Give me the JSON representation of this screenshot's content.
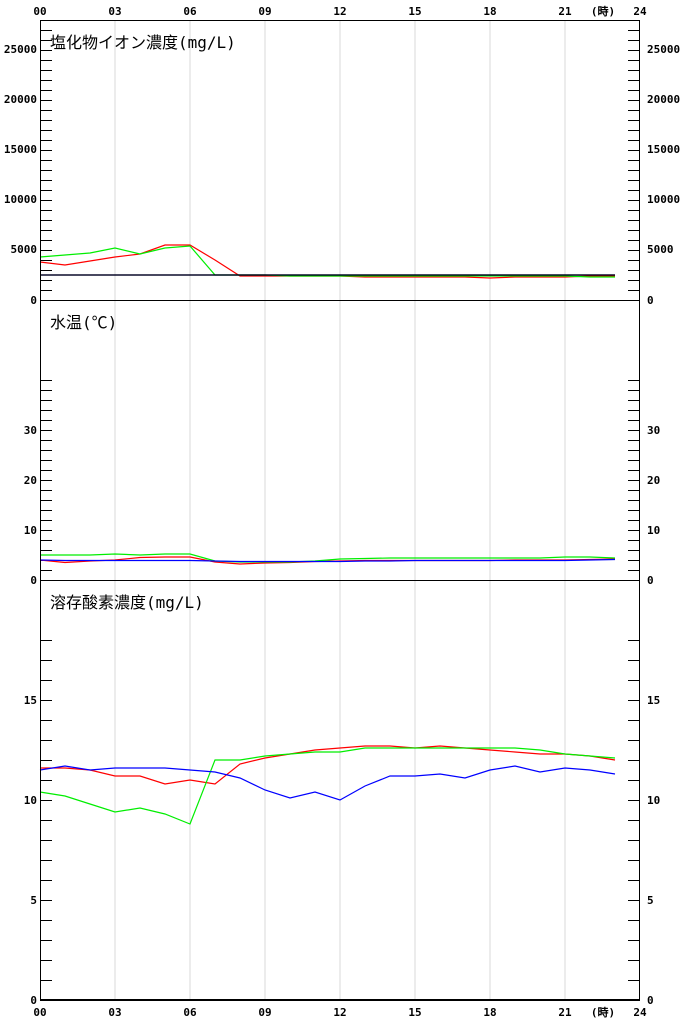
{
  "chart_data": {
    "x_ticks": [
      "00",
      "03",
      "06",
      "09",
      "12",
      "15",
      "18",
      "21",
      "24"
    ],
    "x_unit": "(時)",
    "panels": [
      {
        "title": "塩化物イオン濃度(mg/L)",
        "type": "line",
        "ylim": [
          0,
          28000
        ],
        "y_tick_labels": [
          "0",
          "5000",
          "10000",
          "15000",
          "20000",
          "25000"
        ],
        "y_tick_values": [
          0,
          5000,
          10000,
          15000,
          20000,
          25000
        ],
        "y_minor_step": 1000,
        "x": [
          0,
          1,
          2,
          3,
          4,
          5,
          6,
          7,
          8,
          9,
          10,
          11,
          12,
          13,
          14,
          15,
          16,
          17,
          18,
          19,
          20,
          21,
          22,
          23
        ],
        "series": [
          {
            "color": "#ff0000",
            "values": [
              3800,
              3500,
              3900,
              4300,
              4600,
              5500,
              5500,
              4000,
              2400,
              2400,
              2400,
              2400,
              2400,
              2300,
              2300,
              2300,
              2300,
              2300,
              2200,
              2300,
              2300,
              2300,
              2400,
              2400
            ]
          },
          {
            "color": "#00ee00",
            "values": [
              4300,
              4500,
              4700,
              5200,
              4600,
              5200,
              5400,
              2500,
              2500,
              2500,
              2400,
              2400,
              2400,
              2400,
              2400,
              2400,
              2400,
              2400,
              2400,
              2400,
              2400,
              2400,
              2300,
              2300
            ]
          },
          {
            "color": "#0000ff",
            "values": [
              2500,
              2500,
              2500,
              2500,
              2500,
              2500,
              2500,
              2500,
              2500,
              2500,
              2500,
              2500,
              2500,
              2500,
              2500,
              2500,
              2500,
              2500,
              2500,
              2500,
              2500,
              2500,
              2500,
              2500
            ]
          },
          {
            "color": "#000000",
            "values": [
              2500,
              2500,
              2500,
              2500,
              2500,
              2500,
              2500,
              2500,
              2500,
              2500,
              2500,
              2500,
              2500,
              2500,
              2500,
              2500,
              2500,
              2500,
              2500,
              2500,
              2500,
              2500,
              2500,
              2500
            ]
          }
        ]
      },
      {
        "title": "水温(℃)",
        "type": "line",
        "ylim": [
          0,
          56
        ],
        "y_tick_labels": [
          "0",
          "10",
          "20",
          "30"
        ],
        "y_tick_values": [
          0,
          10,
          20,
          30
        ],
        "y_minor_step": 2,
        "minor_max": 40,
        "x": [
          0,
          1,
          2,
          3,
          4,
          5,
          6,
          7,
          8,
          9,
          10,
          11,
          12,
          13,
          14,
          15,
          16,
          17,
          18,
          19,
          20,
          21,
          22,
          23
        ],
        "series": [
          {
            "color": "#ff0000",
            "values": [
              4.0,
              3.5,
              3.8,
              4.0,
              4.5,
              4.6,
              4.6,
              3.6,
              3.2,
              3.4,
              3.5,
              3.7,
              3.8,
              3.9,
              3.9,
              3.9,
              3.9,
              3.9,
              3.9,
              4.0,
              4.0,
              4.0,
              4.1,
              4.2
            ]
          },
          {
            "color": "#00ee00",
            "values": [
              5.0,
              5.0,
              5.0,
              5.2,
              5.0,
              5.2,
              5.2,
              3.8,
              3.6,
              3.6,
              3.6,
              3.8,
              4.2,
              4.3,
              4.4,
              4.4,
              4.4,
              4.4,
              4.4,
              4.4,
              4.4,
              4.6,
              4.6,
              4.4
            ]
          },
          {
            "color": "#0000ff",
            "values": [
              4.0,
              3.9,
              3.9,
              3.9,
              3.9,
              3.9,
              3.9,
              3.8,
              3.7,
              3.7,
              3.7,
              3.7,
              3.7,
              3.8,
              3.8,
              3.9,
              3.9,
              3.9,
              3.9,
              3.9,
              3.9,
              3.9,
              4.0,
              4.1
            ]
          }
        ]
      },
      {
        "title": "溶存酸素濃度(mg/L)",
        "type": "line",
        "ylim": [
          0,
          21
        ],
        "y_tick_labels": [
          "0",
          "5",
          "10",
          "15"
        ],
        "y_tick_values": [
          0,
          5,
          10,
          15
        ],
        "y_minor_step": 1,
        "minor_max": 18,
        "x": [
          0,
          1,
          2,
          3,
          4,
          5,
          6,
          7,
          8,
          9,
          10,
          11,
          12,
          13,
          14,
          15,
          16,
          17,
          18,
          19,
          20,
          21,
          22,
          23
        ],
        "series": [
          {
            "color": "#ff0000",
            "values": [
              11.6,
              11.6,
              11.5,
              11.2,
              11.2,
              10.8,
              11.0,
              10.8,
              11.8,
              12.1,
              12.3,
              12.5,
              12.6,
              12.7,
              12.7,
              12.6,
              12.7,
              12.6,
              12.5,
              12.4,
              12.3,
              12.3,
              12.2,
              12.0
            ]
          },
          {
            "color": "#00ee00",
            "values": [
              10.4,
              10.2,
              9.8,
              9.4,
              9.6,
              9.3,
              8.8,
              12.0,
              12.0,
              12.2,
              12.3,
              12.4,
              12.4,
              12.6,
              12.6,
              12.6,
              12.6,
              12.6,
              12.6,
              12.6,
              12.5,
              12.3,
              12.2,
              12.1
            ]
          },
          {
            "color": "#0000ff",
            "values": [
              11.5,
              11.7,
              11.5,
              11.6,
              11.6,
              11.6,
              11.5,
              11.4,
              11.1,
              10.5,
              10.1,
              10.4,
              10.0,
              10.7,
              11.2,
              11.2,
              11.3,
              11.1,
              11.5,
              11.7,
              11.4,
              11.6,
              11.5,
              11.3
            ]
          }
        ]
      }
    ]
  }
}
